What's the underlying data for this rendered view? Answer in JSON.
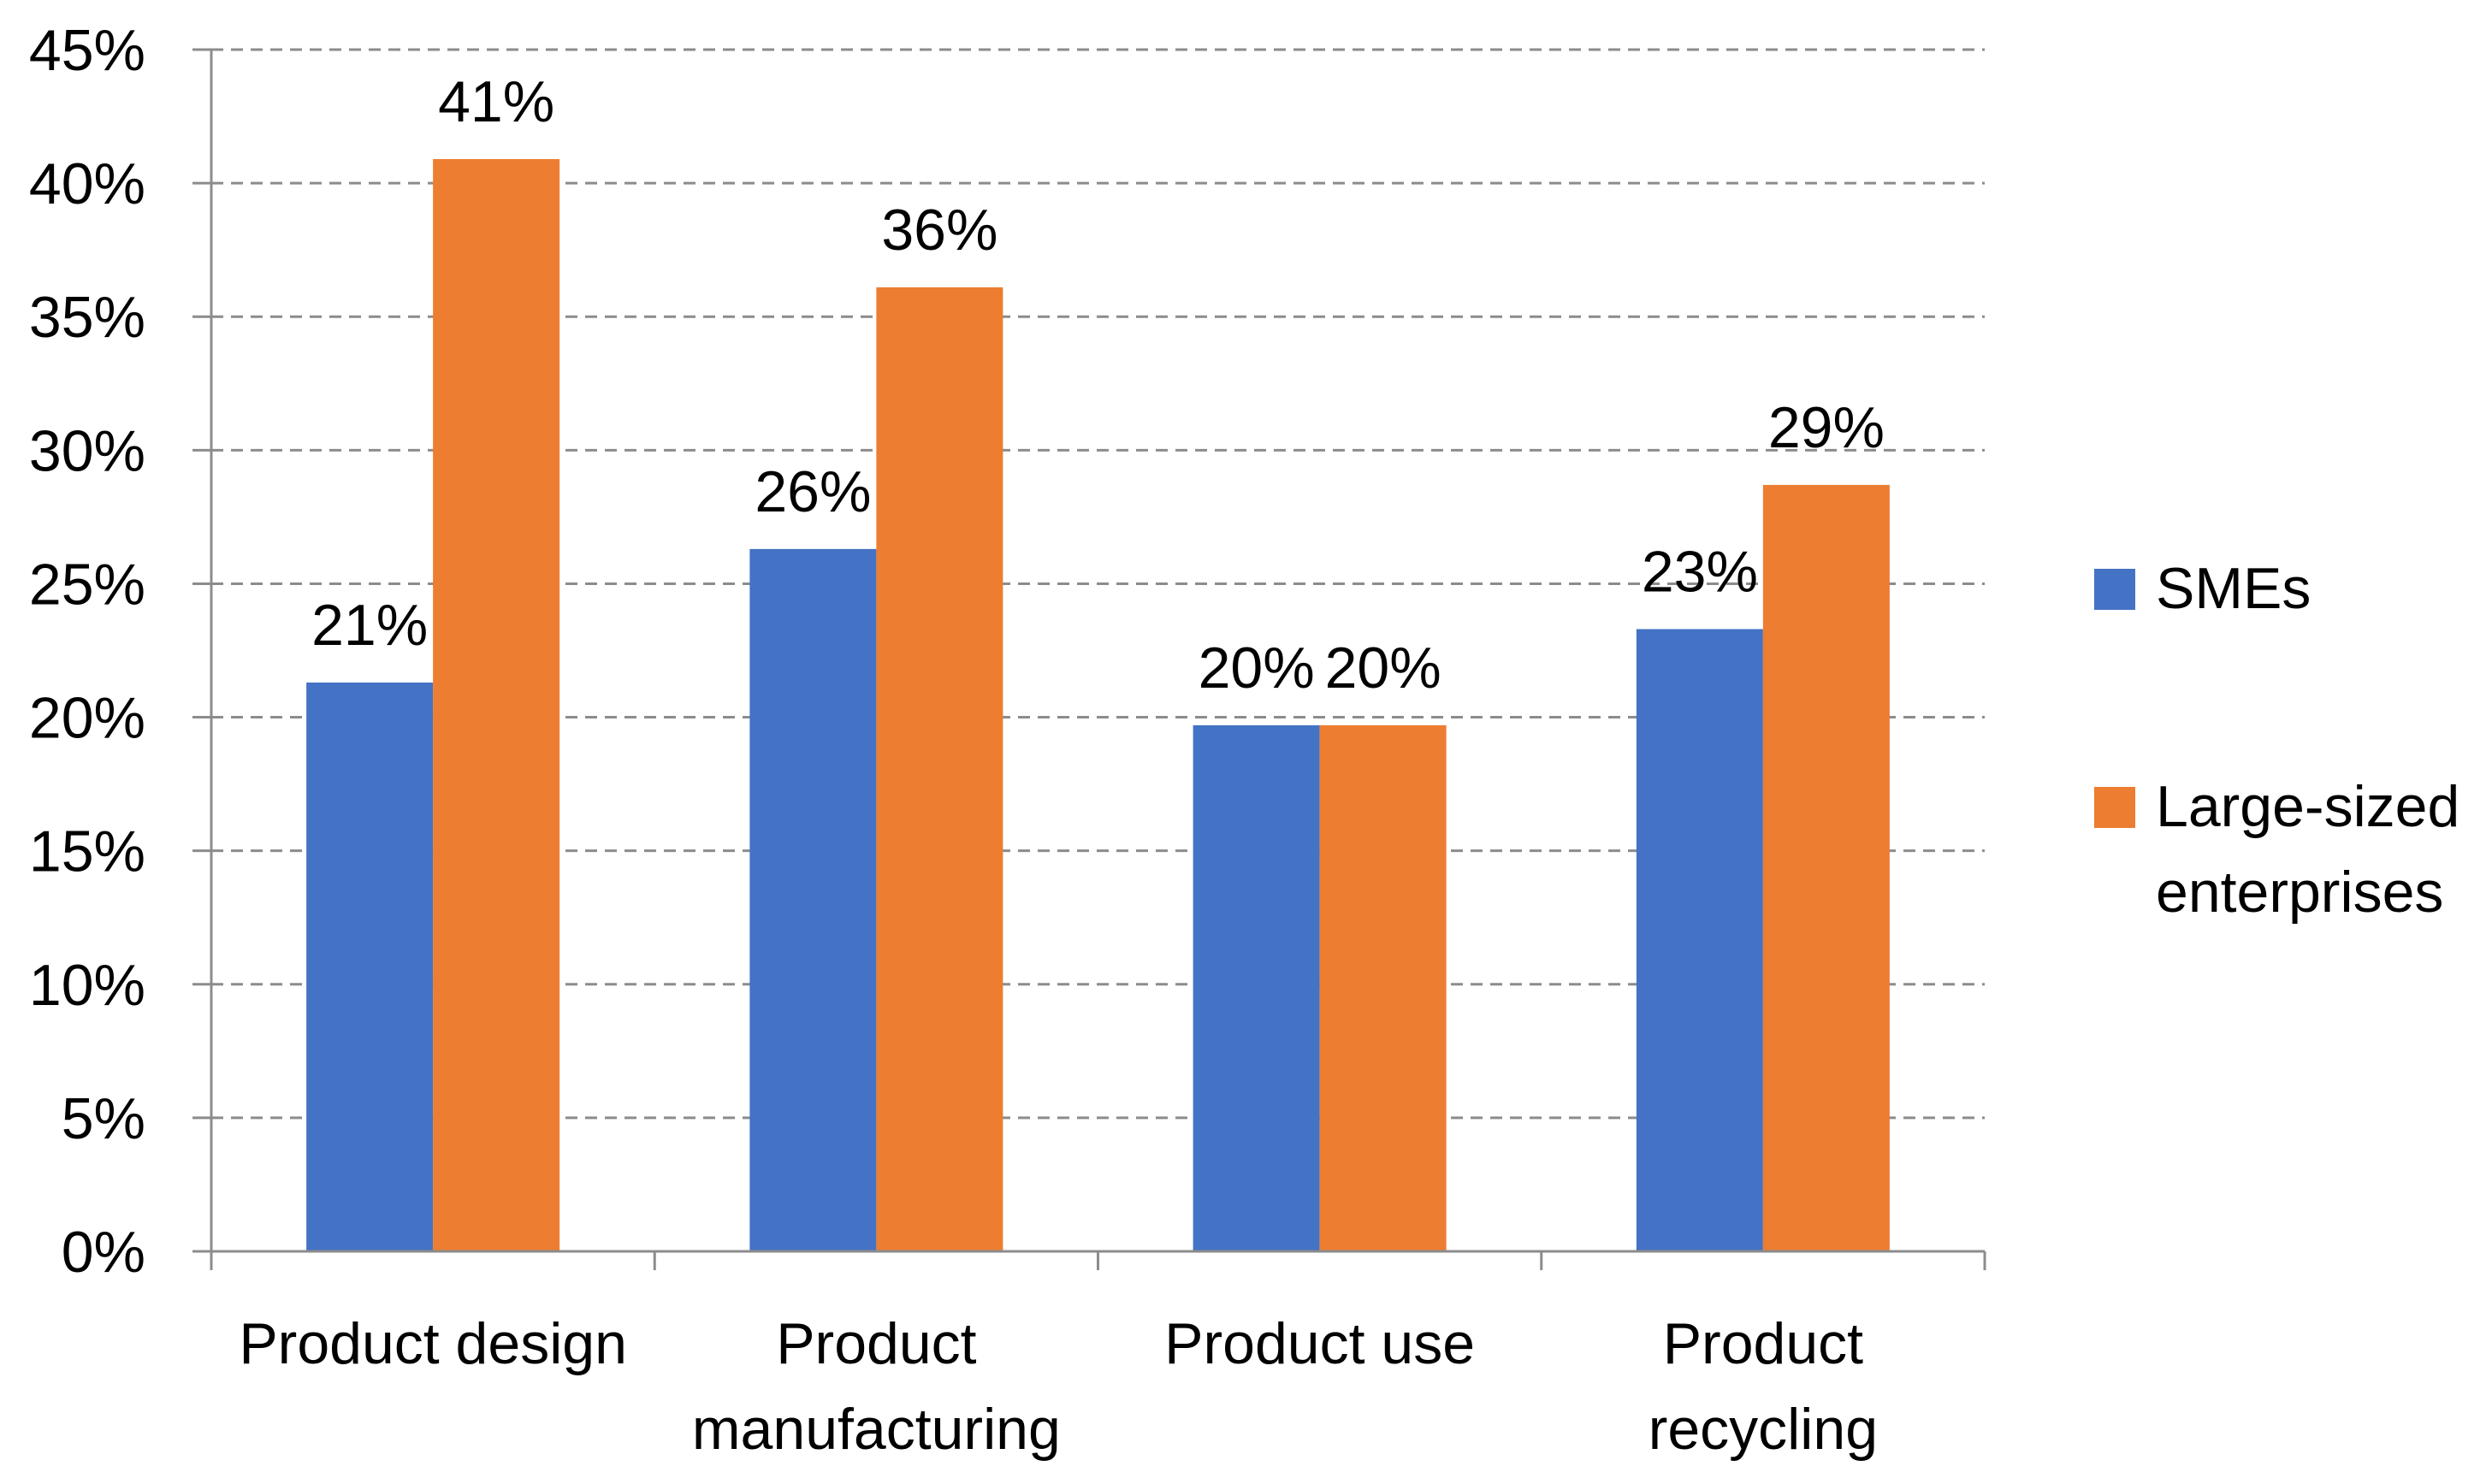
{
  "chart_data": {
    "type": "bar",
    "title": "",
    "xlabel": "",
    "ylabel": "",
    "categories": [
      [
        "Product design"
      ],
      [
        "Product",
        "manufacturing"
      ],
      [
        "Product use"
      ],
      [
        "Product",
        "recycling"
      ]
    ],
    "series": [
      {
        "name": "SMEs",
        "color": "#4472C4",
        "values": [
          21.3,
          26.3,
          19.7,
          23.3
        ],
        "labels": [
          "21%",
          "26%",
          "20%",
          "23%"
        ]
      },
      {
        "name": "Large-sized enterprises",
        "legend_lines": [
          "Large-sized",
          "enterprises"
        ],
        "color": "#ED7D31",
        "values": [
          40.9,
          36.1,
          19.7,
          28.7
        ],
        "labels": [
          "41%",
          "36%",
          "20%",
          "29%"
        ]
      }
    ],
    "ylim": [
      0,
      45
    ],
    "yticks": [
      "0%",
      "5%",
      "10%",
      "15%",
      "20%",
      "25%",
      "30%",
      "35%",
      "40%",
      "45%"
    ],
    "ytick_step": 5,
    "grid": true,
    "grid_style": "dashed",
    "legend_position": "right"
  }
}
